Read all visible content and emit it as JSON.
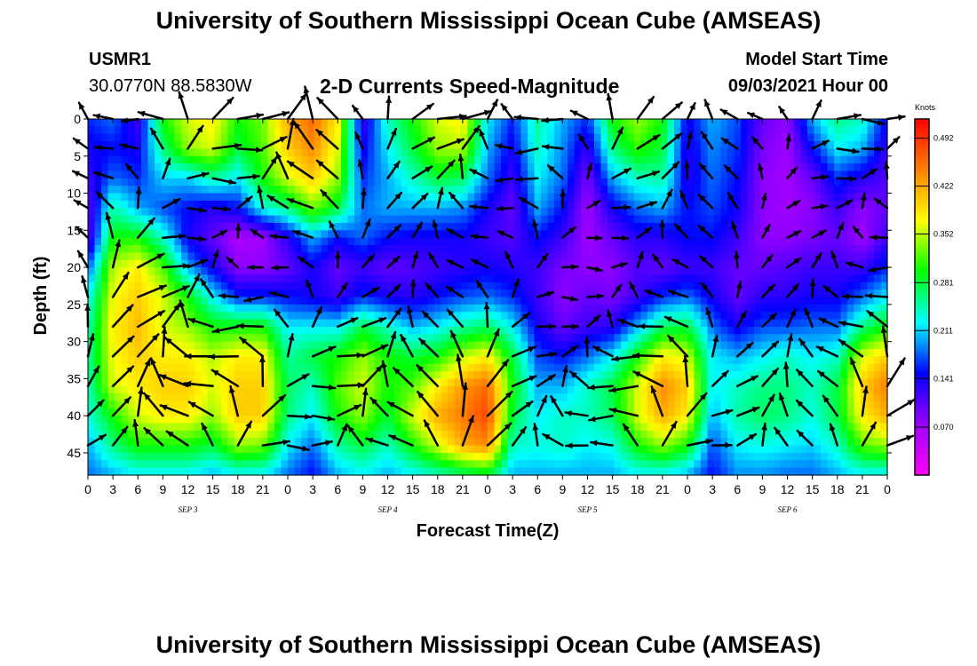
{
  "header": {
    "title_top": "University of Southern Mississippi Ocean Cube (AMSEAS)",
    "title_bottom": "University of Southern Mississippi Ocean Cube (AMSEAS)",
    "station_id": "USMR1",
    "coordinates": "30.0770N  88.5830W",
    "subtitle": "2-D Currents Speed-Magnitude",
    "model_start_label": "Model Start Time",
    "model_start_value": "09/03/2021 Hour 00"
  },
  "colors": {
    "scale": [
      "#ff00ff",
      "#9a00ff",
      "#0000ff",
      "#00ffff",
      "#00ff00",
      "#ffff00",
      "#ff8000",
      "#ff0000"
    ],
    "frame": "#000000"
  },
  "chart_data": {
    "type": "heatmap",
    "title": "2-D Currents Speed-Magnitude",
    "xlabel": "Forecast Time(Z)",
    "ylabel": "Depth (ft)",
    "xlim": [
      0,
      96
    ],
    "ylim": [
      48,
      0
    ],
    "x_ticks": [
      0,
      3,
      6,
      9,
      12,
      15,
      18,
      21,
      24,
      27,
      30,
      33,
      36,
      39,
      42,
      45,
      48,
      51,
      54,
      57,
      60,
      63,
      66,
      69,
      72,
      75,
      78,
      81,
      84,
      87,
      90,
      93,
      96
    ],
    "x_tick_labels": [
      "0",
      "3",
      "6",
      "9",
      "12",
      "15",
      "18",
      "21",
      "0",
      "3",
      "6",
      "9",
      "12",
      "15",
      "18",
      "21",
      "0",
      "3",
      "6",
      "9",
      "12",
      "15",
      "18",
      "21",
      "0",
      "3",
      "6",
      "9",
      "12",
      "15",
      "18",
      "21",
      "0"
    ],
    "day_labels": [
      {
        "x": 12,
        "text": "SEP 3"
      },
      {
        "x": 36,
        "text": "SEP 4"
      },
      {
        "x": 60,
        "text": "SEP 5"
      },
      {
        "x": 84,
        "text": "SEP 6"
      }
    ],
    "y_ticks": [
      0,
      5,
      10,
      15,
      20,
      25,
      30,
      35,
      40,
      45
    ],
    "y_tick_labels": [
      "0",
      "5",
      "10",
      "15",
      "20",
      "25",
      "30",
      "35",
      "40",
      "45"
    ],
    "colorbar": {
      "unit": "Knots",
      "min": 0,
      "max": 0.52,
      "tick_values": [
        0.07,
        0.141,
        0.211,
        0.281,
        0.352,
        0.422,
        0.492
      ],
      "tick_labels": [
        "0.070",
        "0.141",
        "0.211",
        "0.281",
        "0.352",
        "0.422",
        "0.492"
      ]
    },
    "speed_hours": [
      0,
      3,
      6,
      9,
      12,
      15,
      18,
      21,
      24,
      27,
      30,
      33,
      36,
      39,
      42,
      45,
      48,
      51,
      54,
      57,
      60,
      63,
      66,
      69,
      72,
      75,
      78,
      81,
      84,
      87,
      90,
      93,
      96
    ],
    "speed_depths": [
      0,
      4,
      8,
      12,
      16,
      20,
      24,
      28,
      32,
      36,
      40,
      44,
      48
    ],
    "speed_knots": [
      [
        0.16,
        0.14,
        0.12,
        0.1,
        0.1,
        0.17,
        0.22,
        0.24,
        0.25,
        0.24,
        0.23,
        0.2,
        0.18
      ],
      [
        0.18,
        0.15,
        0.18,
        0.25,
        0.3,
        0.35,
        0.37,
        0.38,
        0.37,
        0.36,
        0.3,
        0.26,
        0.2
      ],
      [
        0.12,
        0.14,
        0.16,
        0.2,
        0.3,
        0.38,
        0.4,
        0.41,
        0.4,
        0.38,
        0.36,
        0.3,
        0.22
      ],
      [
        0.3,
        0.26,
        0.21,
        0.17,
        0.24,
        0.32,
        0.36,
        0.36,
        0.38,
        0.4,
        0.38,
        0.3,
        0.22
      ],
      [
        0.36,
        0.34,
        0.21,
        0.15,
        0.14,
        0.2,
        0.3,
        0.34,
        0.38,
        0.4,
        0.38,
        0.3,
        0.22
      ],
      [
        0.38,
        0.36,
        0.25,
        0.13,
        0.1,
        0.14,
        0.22,
        0.3,
        0.35,
        0.36,
        0.34,
        0.28,
        0.2
      ],
      [
        0.3,
        0.28,
        0.22,
        0.15,
        0.06,
        0.08,
        0.16,
        0.3,
        0.38,
        0.4,
        0.4,
        0.34,
        0.22
      ],
      [
        0.33,
        0.32,
        0.3,
        0.23,
        0.07,
        0.08,
        0.16,
        0.3,
        0.38,
        0.4,
        0.4,
        0.33,
        0.22
      ],
      [
        0.42,
        0.4,
        0.36,
        0.26,
        0.13,
        0.1,
        0.15,
        0.22,
        0.25,
        0.27,
        0.26,
        0.22,
        0.18
      ],
      [
        0.46,
        0.44,
        0.4,
        0.33,
        0.2,
        0.14,
        0.14,
        0.22,
        0.28,
        0.24,
        0.22,
        0.18,
        0.15
      ],
      [
        0.38,
        0.36,
        0.34,
        0.28,
        0.15,
        0.1,
        0.12,
        0.22,
        0.3,
        0.32,
        0.3,
        0.25,
        0.2
      ],
      [
        0.12,
        0.14,
        0.16,
        0.18,
        0.18,
        0.12,
        0.16,
        0.28,
        0.34,
        0.36,
        0.34,
        0.28,
        0.22
      ],
      [
        0.24,
        0.22,
        0.2,
        0.2,
        0.15,
        0.1,
        0.14,
        0.24,
        0.3,
        0.3,
        0.28,
        0.24,
        0.2
      ],
      [
        0.3,
        0.28,
        0.24,
        0.2,
        0.14,
        0.11,
        0.13,
        0.2,
        0.28,
        0.32,
        0.36,
        0.3,
        0.22
      ],
      [
        0.36,
        0.34,
        0.28,
        0.2,
        0.14,
        0.12,
        0.15,
        0.22,
        0.3,
        0.38,
        0.42,
        0.36,
        0.24
      ],
      [
        0.38,
        0.35,
        0.27,
        0.19,
        0.14,
        0.13,
        0.17,
        0.25,
        0.35,
        0.43,
        0.45,
        0.42,
        0.26
      ],
      [
        0.22,
        0.2,
        0.18,
        0.14,
        0.12,
        0.14,
        0.18,
        0.27,
        0.38,
        0.46,
        0.48,
        0.44,
        0.28
      ],
      [
        0.16,
        0.14,
        0.12,
        0.1,
        0.11,
        0.13,
        0.16,
        0.22,
        0.28,
        0.3,
        0.28,
        0.24,
        0.2
      ],
      [
        0.25,
        0.24,
        0.22,
        0.2,
        0.15,
        0.12,
        0.12,
        0.14,
        0.17,
        0.2,
        0.22,
        0.23,
        0.2
      ],
      [
        0.2,
        0.19,
        0.18,
        0.15,
        0.12,
        0.09,
        0.08,
        0.1,
        0.15,
        0.2,
        0.24,
        0.24,
        0.2
      ],
      [
        0.16,
        0.12,
        0.09,
        0.07,
        0.07,
        0.08,
        0.1,
        0.12,
        0.18,
        0.24,
        0.24,
        0.22,
        0.2
      ],
      [
        0.3,
        0.26,
        0.2,
        0.14,
        0.1,
        0.08,
        0.09,
        0.13,
        0.22,
        0.28,
        0.27,
        0.23,
        0.2
      ],
      [
        0.34,
        0.31,
        0.24,
        0.18,
        0.13,
        0.11,
        0.12,
        0.2,
        0.3,
        0.36,
        0.36,
        0.3,
        0.22
      ],
      [
        0.3,
        0.28,
        0.25,
        0.2,
        0.13,
        0.1,
        0.16,
        0.27,
        0.38,
        0.44,
        0.42,
        0.34,
        0.22
      ],
      [
        0.14,
        0.13,
        0.13,
        0.15,
        0.15,
        0.12,
        0.18,
        0.28,
        0.36,
        0.4,
        0.38,
        0.3,
        0.2
      ],
      [
        0.2,
        0.19,
        0.18,
        0.17,
        0.15,
        0.12,
        0.14,
        0.18,
        0.22,
        0.22,
        0.2,
        0.17,
        0.15
      ],
      [
        0.17,
        0.16,
        0.15,
        0.14,
        0.12,
        0.1,
        0.1,
        0.14,
        0.2,
        0.24,
        0.25,
        0.22,
        0.19
      ],
      [
        0.1,
        0.09,
        0.08,
        0.08,
        0.08,
        0.1,
        0.13,
        0.17,
        0.22,
        0.26,
        0.27,
        0.23,
        0.19
      ],
      [
        0.08,
        0.07,
        0.07,
        0.07,
        0.08,
        0.11,
        0.13,
        0.17,
        0.24,
        0.26,
        0.26,
        0.22,
        0.18
      ],
      [
        0.2,
        0.15,
        0.1,
        0.08,
        0.09,
        0.12,
        0.14,
        0.18,
        0.22,
        0.24,
        0.23,
        0.21,
        0.18
      ],
      [
        0.26,
        0.22,
        0.16,
        0.12,
        0.1,
        0.12,
        0.14,
        0.18,
        0.24,
        0.28,
        0.28,
        0.24,
        0.2
      ],
      [
        0.24,
        0.2,
        0.13,
        0.08,
        0.07,
        0.12,
        0.18,
        0.26,
        0.36,
        0.4,
        0.38,
        0.32,
        0.22
      ],
      [
        0.14,
        0.12,
        0.11,
        0.1,
        0.12,
        0.16,
        0.22,
        0.3,
        0.4,
        0.45,
        0.42,
        0.34,
        0.22
      ]
    ]
  }
}
